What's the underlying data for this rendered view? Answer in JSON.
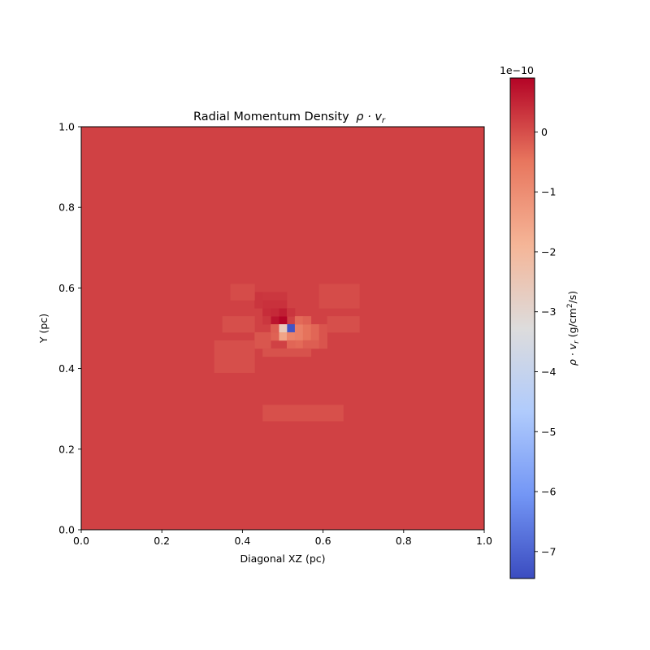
{
  "chart_data": {
    "type": "heatmap",
    "title": "Radial Momentum Density",
    "title_math": "ρ · v",
    "title_math_sub": "r",
    "xlabel": "Diagonal XZ (pc)",
    "ylabel": "Y (pc)",
    "xlim": [
      0.0,
      1.0
    ],
    "ylim": [
      0.0,
      1.0
    ],
    "x_ticks": [
      "0.0",
      "0.2",
      "0.4",
      "0.6",
      "0.8",
      "1.0"
    ],
    "y_ticks": [
      "0.0",
      "0.2",
      "0.4",
      "0.6",
      "0.8",
      "1.0"
    ],
    "grid": false,
    "colormap": "coolwarm",
    "colormap_stops": [
      "#3b4cc0",
      "#7396f5",
      "#b0cbfc",
      "#dddcdc",
      "#f5b597",
      "#e8765e",
      "#b40426"
    ],
    "background_value": 0.15,
    "colorbar": {
      "range": [
        -7.45,
        0.9
      ],
      "ticks": [
        "0",
        "−1",
        "−2",
        "−3",
        "−4",
        "−5",
        "−6",
        "−7"
      ],
      "tick_values": [
        0,
        -1,
        -2,
        -3,
        -4,
        -5,
        -6,
        -7
      ],
      "offset_label": "1e−10",
      "label_prefix": "ρ · v",
      "label_sub": "r",
      "label_unit_pre": " (g/cm",
      "label_unit_sup": "2",
      "label_unit_post": "/s)"
    },
    "grid_resolution": 50,
    "cells": [
      {
        "x": 0.49,
        "y": 0.51,
        "w": 0.02,
        "h": 0.02,
        "value": 0.9
      },
      {
        "x": 0.47,
        "y": 0.51,
        "w": 0.02,
        "h": 0.02,
        "value": 0.7
      },
      {
        "x": 0.49,
        "y": 0.53,
        "w": 0.02,
        "h": 0.02,
        "value": 0.6
      },
      {
        "x": 0.47,
        "y": 0.53,
        "w": 0.02,
        "h": 0.02,
        "value": 0.45
      },
      {
        "x": 0.45,
        "y": 0.53,
        "w": 0.02,
        "h": 0.02,
        "value": 0.4
      },
      {
        "x": 0.45,
        "y": 0.55,
        "w": 0.04,
        "h": 0.02,
        "value": 0.35
      },
      {
        "x": 0.49,
        "y": 0.55,
        "w": 0.02,
        "h": 0.02,
        "value": 0.35
      },
      {
        "x": 0.51,
        "y": 0.53,
        "w": 0.02,
        "h": 0.02,
        "value": 0.3
      },
      {
        "x": 0.43,
        "y": 0.55,
        "w": 0.02,
        "h": 0.04,
        "value": 0.3
      },
      {
        "x": 0.45,
        "y": 0.57,
        "w": 0.06,
        "h": 0.02,
        "value": 0.28
      },
      {
        "x": 0.45,
        "y": 0.51,
        "w": 0.02,
        "h": 0.02,
        "value": 0.28
      },
      {
        "x": 0.51,
        "y": 0.49,
        "w": 0.02,
        "h": 0.02,
        "value": -7.3
      },
      {
        "x": 0.49,
        "y": 0.49,
        "w": 0.02,
        "h": 0.02,
        "value": -2.6
      },
      {
        "x": 0.49,
        "y": 0.47,
        "w": 0.02,
        "h": 0.02,
        "value": -1.5
      },
      {
        "x": 0.51,
        "y": 0.47,
        "w": 0.02,
        "h": 0.02,
        "value": -0.8
      },
      {
        "x": 0.53,
        "y": 0.47,
        "w": 0.02,
        "h": 0.04,
        "value": -0.7
      },
      {
        "x": 0.55,
        "y": 0.47,
        "w": 0.02,
        "h": 0.04,
        "value": -0.45
      },
      {
        "x": 0.53,
        "y": 0.51,
        "w": 0.02,
        "h": 0.02,
        "value": -0.35
      },
      {
        "x": 0.55,
        "y": 0.51,
        "w": 0.02,
        "h": 0.02,
        "value": -0.25
      },
      {
        "x": 0.57,
        "y": 0.47,
        "w": 0.02,
        "h": 0.04,
        "value": -0.3
      },
      {
        "x": 0.53,
        "y": 0.45,
        "w": 0.04,
        "h": 0.02,
        "value": -0.35
      },
      {
        "x": 0.51,
        "y": 0.45,
        "w": 0.02,
        "h": 0.02,
        "value": -0.3
      },
      {
        "x": 0.47,
        "y": 0.47,
        "w": 0.02,
        "h": 0.02,
        "value": -0.25
      },
      {
        "x": 0.47,
        "y": 0.49,
        "w": 0.02,
        "h": 0.02,
        "value": -0.2
      },
      {
        "x": 0.55,
        "y": 0.45,
        "w": 0.04,
        "h": 0.02,
        "value": -0.2
      },
      {
        "x": 0.43,
        "y": 0.45,
        "w": 0.04,
        "h": 0.04,
        "value": -0.1
      },
      {
        "x": 0.59,
        "y": 0.45,
        "w": 0.02,
        "h": 0.06,
        "value": -0.08
      },
      {
        "x": 0.45,
        "y": 0.43,
        "w": 0.12,
        "h": 0.02,
        "value": -0.05
      },
      {
        "x": 0.35,
        "y": 0.49,
        "w": 0.08,
        "h": 0.04,
        "value": -0.02
      },
      {
        "x": 0.61,
        "y": 0.49,
        "w": 0.08,
        "h": 0.04,
        "value": -0.02
      },
      {
        "x": 0.33,
        "y": 0.39,
        "w": 0.1,
        "h": 0.08,
        "value": -0.02
      },
      {
        "x": 0.45,
        "y": 0.27,
        "w": 0.2,
        "h": 0.04,
        "value": -0.03
      },
      {
        "x": 0.59,
        "y": 0.55,
        "w": 0.1,
        "h": 0.06,
        "value": 0.02
      },
      {
        "x": 0.37,
        "y": 0.57,
        "w": 0.06,
        "h": 0.04,
        "value": 0.02
      }
    ]
  }
}
